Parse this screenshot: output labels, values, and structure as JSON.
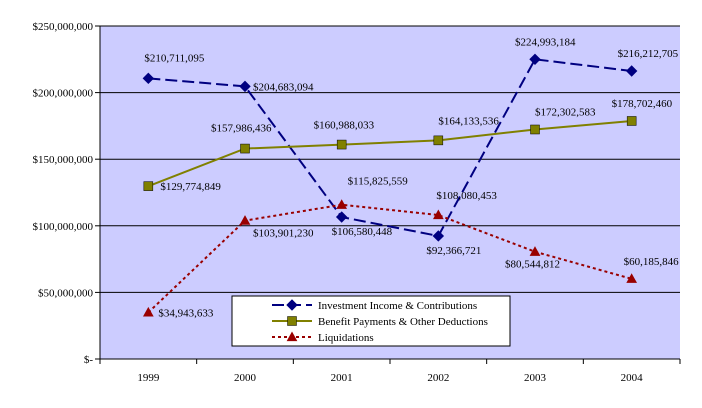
{
  "chart_data": {
    "type": "line",
    "title": "",
    "xlabel": "",
    "ylabel": "",
    "categories": [
      "1999",
      "2000",
      "2001",
      "2002",
      "2003",
      "2004"
    ],
    "ylim": [
      0,
      250000000
    ],
    "y_ticks": [
      0,
      50000000,
      100000000,
      150000000,
      200000000,
      250000000
    ],
    "y_tick_labels": [
      "$-",
      "$50,000,000",
      "$100,000,000",
      "$150,000,000",
      "$200,000,000",
      "$250,000,000"
    ],
    "grid": true,
    "plot_background": "#ccccff",
    "legend_position": "bottom-left",
    "series": [
      {
        "name": "Investment Income & Contributions",
        "color": "#000080",
        "line_style": "dashed",
        "marker": "diamond",
        "values": [
          210711095,
          204683094,
          106580448,
          92366721,
          224993184,
          216212705
        ],
        "labels": [
          "$210,711,095",
          "$204,683,094",
          "$106,580,448",
          "$92,366,721",
          "$224,993,184",
          "$216,212,705"
        ]
      },
      {
        "name": "Benefit Payments & Other Deductions",
        "color": "#808000",
        "line_style": "solid",
        "marker": "square",
        "values": [
          129774849,
          157986436,
          160988033,
          164133536,
          172302583,
          178702460
        ],
        "labels": [
          "$129,774,849",
          "$157,986,436",
          "$160,988,033",
          "$164,133,536",
          "$172,302,583",
          "$178,702,460"
        ]
      },
      {
        "name": "Liquidations",
        "color": "#990000",
        "line_style": "dotted",
        "marker": "triangle",
        "values": [
          34943633,
          103901230,
          115825559,
          108080453,
          80544812,
          60185846
        ],
        "labels": [
          "$34,943,633",
          "$103,901,230",
          "$115,825,559",
          "$108,080,453",
          "$80,544,812",
          "$60,185,846"
        ]
      }
    ]
  }
}
